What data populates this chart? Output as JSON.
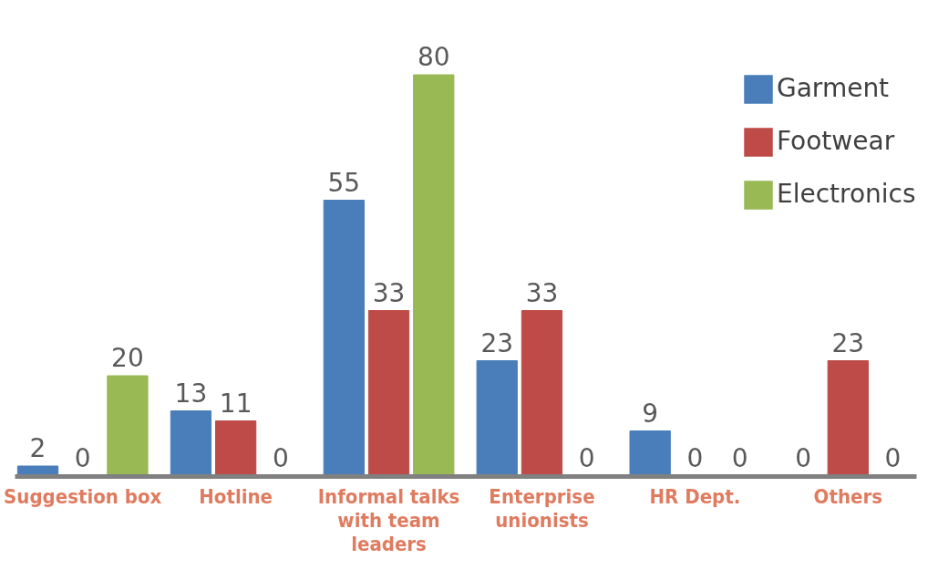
{
  "chart_data": {
    "type": "bar",
    "categories": [
      "Suggestion box",
      "Hotline",
      "Informal talks with team leaders",
      "Enterprise unionists",
      "HR Dept.",
      "Others"
    ],
    "series": [
      {
        "name": "Garment",
        "color": "#4a7ebb",
        "values": [
          2,
          13,
          55,
          23,
          9,
          0
        ]
      },
      {
        "name": "Footwear",
        "color": "#be4b48",
        "values": [
          0,
          11,
          33,
          33,
          0,
          23
        ]
      },
      {
        "name": "Electronics",
        "color": "#98b954",
        "values": [
          20,
          0,
          80,
          0,
          0,
          0
        ]
      }
    ],
    "data_labels": true,
    "legend": "top right",
    "grid": false
  }
}
